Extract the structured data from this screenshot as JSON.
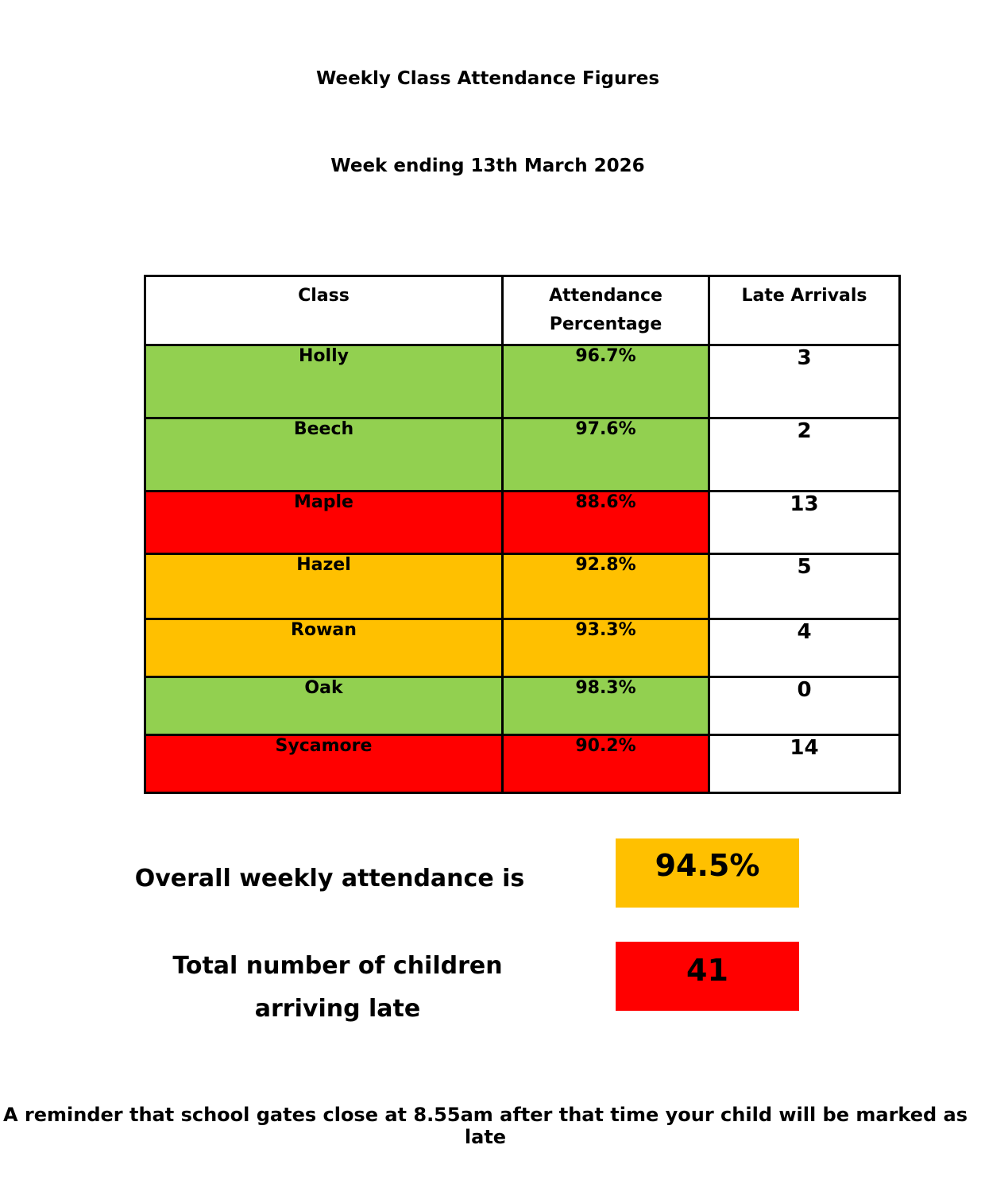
{
  "title": "Weekly Class Attendance Figures",
  "subtitle": "Week ending  13th March 2026",
  "table": {
    "headers": {
      "class": "Class",
      "attendance_line1": "Attendance",
      "attendance_line2": "Percentage",
      "late": "Late Arrivals"
    },
    "rows": [
      {
        "class": "Holly",
        "attendance": "96.7%",
        "late": "3",
        "status_color": "#92d050",
        "row_height": 92
      },
      {
        "class": "Beech",
        "attendance": "97.6%",
        "late": "2",
        "status_color": "#92d050",
        "row_height": 92
      },
      {
        "class": "Maple",
        "attendance": "88.6%",
        "late": "13",
        "status_color": "#ff0000",
        "row_height": 79
      },
      {
        "class": "Hazel",
        "attendance": "92.8%",
        "late": "5",
        "status_color": "#ffc000",
        "row_height": 82
      },
      {
        "class": "Rowan",
        "attendance": "93.3%",
        "late": "4",
        "status_color": "#ffc000",
        "row_height": 73
      },
      {
        "class": "Oak",
        "attendance": "98.3%",
        "late": "0",
        "status_color": "#92d050",
        "row_height": 73
      },
      {
        "class": "Sycamore",
        "attendance": "90.2%",
        "late": "14",
        "status_color": "#ff0000",
        "row_height": 73
      }
    ]
  },
  "summary": {
    "overall_label": "Overall weekly attendance is",
    "overall_value": "94.5%",
    "overall_color": "#ffc000",
    "late_label": "Total number of children arriving late",
    "late_value": "41",
    "late_color": "#ff0000"
  },
  "reminder": "A reminder that school gates close at 8.55am after that time your child will be marked as late"
}
